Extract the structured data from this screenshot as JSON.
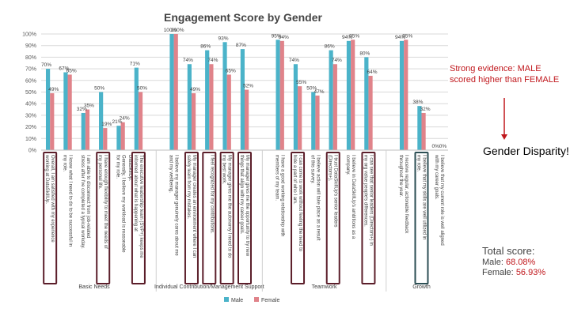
{
  "chart_data": {
    "type": "bar",
    "title": "Engagement Score by Gender",
    "ylim": [
      0,
      100
    ],
    "y_ticks": [
      "0%",
      "10%",
      "20%",
      "30%",
      "40%",
      "50%",
      "60%",
      "70%",
      "80%",
      "90%",
      "100%"
    ],
    "grid": true,
    "legend_position": "bottom",
    "series": [
      {
        "name": "Male",
        "color": "#4bb3c9"
      },
      {
        "name": "Female",
        "color": "#e0838a"
      }
    ],
    "groups": [
      {
        "label": "Basic Needs",
        "items": [
          {
            "q": "Overall, I am satisfied with my experience working at DataSkillUp.",
            "male": 70,
            "female": 49,
            "boxed": true
          },
          {
            "q": "I know what I need to do to be successful in my role.",
            "male": 67,
            "female": 65
          },
          {
            "q": "I am able to disconnect from job-related stress after I've completed a typical workday.",
            "male": 32,
            "female": 35
          },
          {
            "q": "I have enough flexibility to meet the needs of my personal life.",
            "male": 50,
            "female": 19,
            "boxed": true
          },
          {
            "q": "Generally, I believe my workload is reasonable for my role.",
            "male": 21,
            "female": 24
          },
          {
            "q": "The executive leadership team (SVP+) keeps me informed about what is happening at DataSkillUp.",
            "male": 71,
            "female": 50,
            "boxed": true
          }
        ]
      },
      {
        "label": "Individual Contribution/Management Support",
        "items": [
          {
            "q": "I believe my manager genuinely cares about me and my wellbeing.",
            "male": 100,
            "female": 100
          },
          {
            "q": "My manager creates an environment where I can safely learn from my mistakes.",
            "male": 74,
            "female": 49,
            "boxed": true
          },
          {
            "q": "I feel recognized for my contributions.",
            "male": 86,
            "female": 74,
            "boxed": true
          },
          {
            "q": "My manager gives me the autonomy I need to do my best work.",
            "male": 93,
            "female": 65,
            "boxed": true
          },
          {
            "q": "My manager gives me the opportunity to try new things that align with my career goals.",
            "male": 87,
            "female": 52,
            "boxed": true
          }
        ]
      },
      {
        "label": "Teamwork",
        "items": [
          {
            "q": "I have a good working relationship with members of my team.",
            "male": 95,
            "female": 94
          },
          {
            "q": "I can come to work without feeling the need to hide a part of who I am.",
            "male": 74,
            "female": 55,
            "boxed": true
          },
          {
            "q": "I believe action will take place as a result of this survey.",
            "male": 50,
            "female": 47
          },
          {
            "q": "I trust DataSkillUp's senior leaders (Directors+).",
            "male": 86,
            "female": 74,
            "boxed": true
          },
          {
            "q": "I believe in DataSkillUp's ambitions as a company.",
            "male": 94,
            "female": 95
          },
          {
            "q": "I can see that senior leaders (Directors+) in my org value people's differences.",
            "male": 80,
            "female": 64,
            "boxed": true
          }
        ]
      },
      {
        "label": "Growth",
        "items": [
          {
            "q": "I receive regular, actionable feedback throughout the year.",
            "male": 94,
            "female": 95
          },
          {
            "q": "I believe that my skills are well utilized in my role.",
            "male": 38,
            "female": 32,
            "boxed": true,
            "box_color": "#2d4f54"
          },
          {
            "q": "I believe that my current role is well aligned with my career goals.",
            "male": 0,
            "female": 0
          }
        ]
      }
    ]
  },
  "annotations": {
    "evidence": "Strong evidence: MALE scored higher than FEMALE",
    "disparity": "Gender Disparity!",
    "total_title": "Total score:",
    "male_label": "Male:",
    "male_total": "68.08%",
    "female_label": "Female:",
    "female_total": "56.93%",
    "evidence_color": "#c0171c",
    "score_color": "#c0171c",
    "box_color": "#5b1e2a"
  }
}
